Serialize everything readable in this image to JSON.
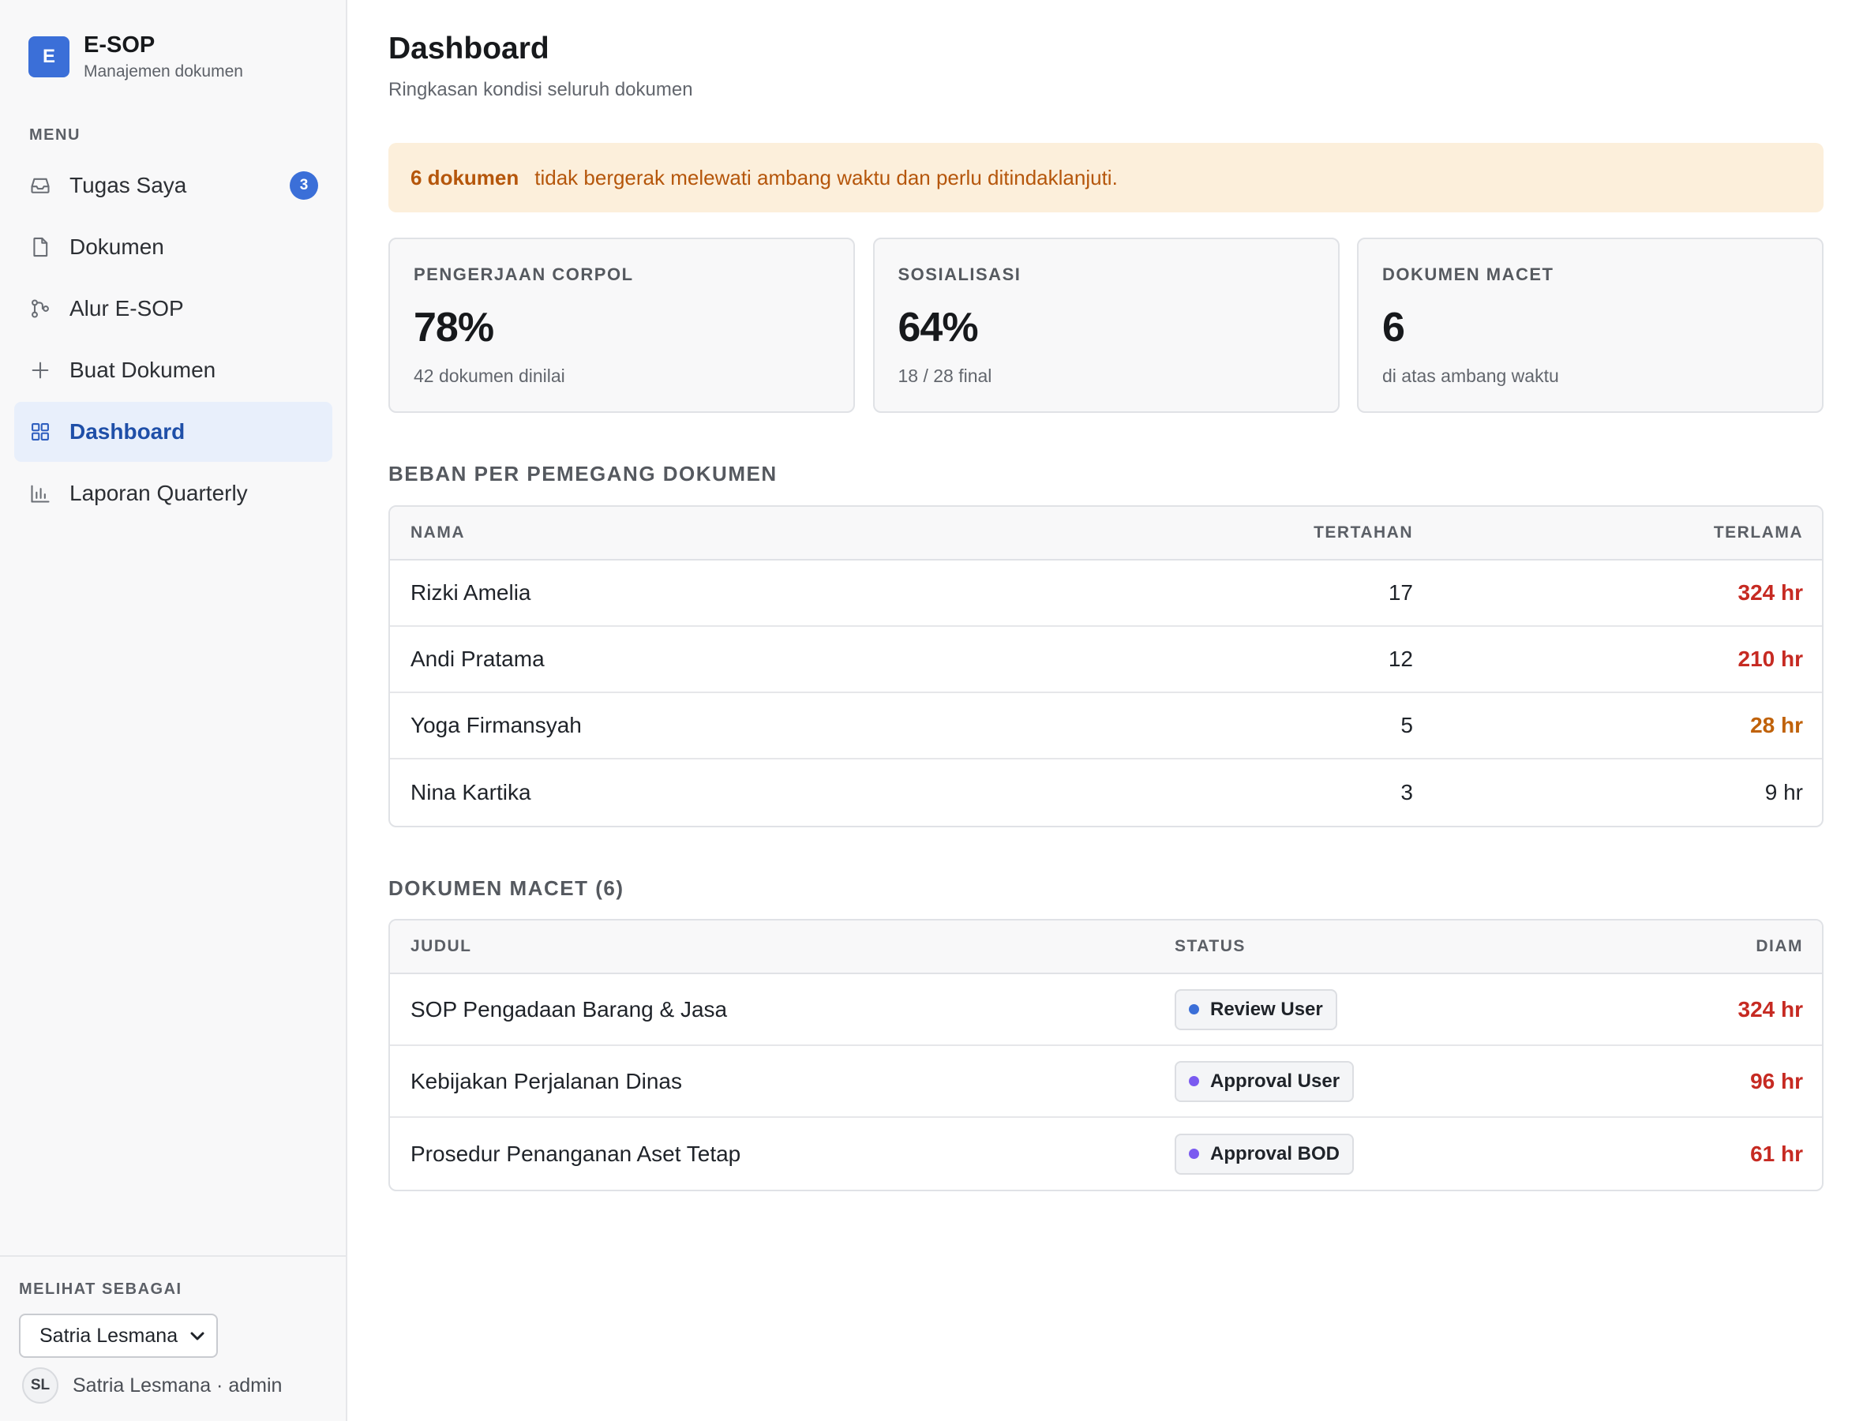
{
  "brand": {
    "logo_letter": "E",
    "name": "E-SOP",
    "subtitle": "Manajemen dokumen"
  },
  "sidebar": {
    "menu_label": "MENU",
    "items": [
      {
        "label": "Tugas Saya",
        "icon": "inbox-icon",
        "badge": "3",
        "active": false
      },
      {
        "label": "Dokumen",
        "icon": "file-icon",
        "active": false
      },
      {
        "label": "Alur E-SOP",
        "icon": "workflow-icon",
        "active": false
      },
      {
        "label": "Buat Dokumen",
        "icon": "plus-icon",
        "active": false
      },
      {
        "label": "Dashboard",
        "icon": "grid-icon",
        "active": true
      },
      {
        "label": "Laporan Quarterly",
        "icon": "bar-chart-icon",
        "active": false
      }
    ],
    "view_as": {
      "label": "MELIHAT SEBAGAI",
      "selected": "Satria Lesmana",
      "user_initials": "SL",
      "user_text": "Satria Lesmana · admin"
    }
  },
  "page": {
    "title": "Dashboard",
    "subtitle": "Ringkasan kondisi seluruh dokumen"
  },
  "alert": {
    "strong": "6 dokumen",
    "text": "tidak bergerak melewati ambang waktu dan perlu ditindaklanjuti."
  },
  "cards": [
    {
      "label": "PENGERJAAN CORPOL",
      "value": "78%",
      "sub": "42 dokumen dinilai"
    },
    {
      "label": "SOSIALISASI",
      "value": "64%",
      "sub": "18 / 28 final"
    },
    {
      "label": "DOKUMEN MACET",
      "value": "6",
      "sub": "di atas ambang waktu"
    }
  ],
  "workload": {
    "title": "BEBAN PER PEMEGANG DOKUMEN",
    "columns": {
      "name": "NAMA",
      "pending": "TERTAHAN",
      "oldest": "TERLAMA"
    },
    "rows": [
      {
        "name": "Rizki Amelia",
        "pending": "17",
        "oldest": "324 hr",
        "severity": "red"
      },
      {
        "name": "Andi Pratama",
        "pending": "12",
        "oldest": "210 hr",
        "severity": "red"
      },
      {
        "name": "Yoga Firmansyah",
        "pending": "5",
        "oldest": "28 hr",
        "severity": "orange"
      },
      {
        "name": "Nina Kartika",
        "pending": "3",
        "oldest": "9 hr",
        "severity": "plain"
      }
    ]
  },
  "stuck": {
    "title": "DOKUMEN MACET (6)",
    "columns": {
      "title": "JUDUL",
      "status": "STATUS",
      "idle": "DIAM"
    },
    "rows": [
      {
        "title": "SOP Pengadaan Barang & Jasa",
        "status": "Review User",
        "status_color": "#3b6fd8",
        "idle": "324 hr"
      },
      {
        "title": "Kebijakan Perjalanan Dinas",
        "status": "Approval User",
        "status_color": "#7a5af0",
        "idle": "96 hr"
      },
      {
        "title": "Prosedur Penanganan Aset Tetap",
        "status": "Approval BOD",
        "status_color": "#7a5af0",
        "idle": "61 hr"
      }
    ]
  }
}
